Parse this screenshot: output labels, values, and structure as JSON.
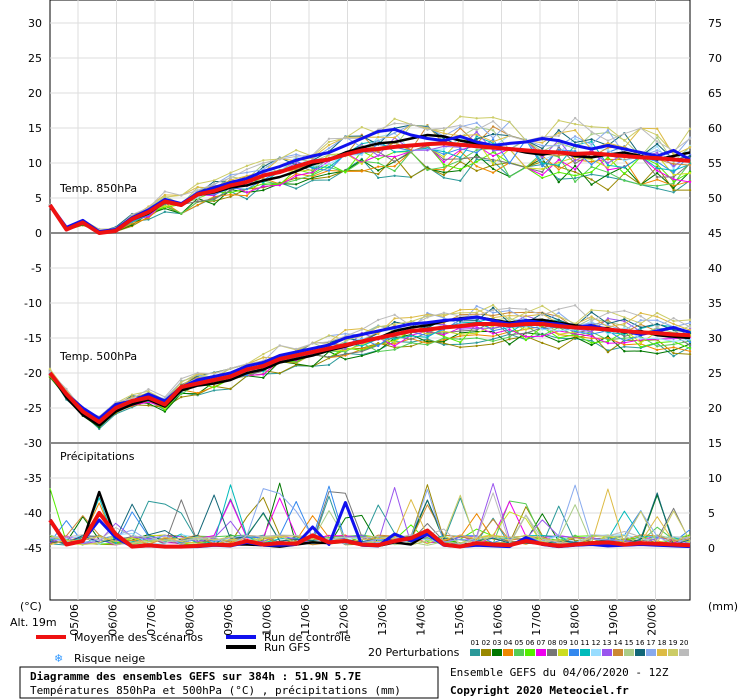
{
  "chart_data": {
    "type": "line",
    "x_dates": [
      "05/06",
      "06/06",
      "07/06",
      "08/06",
      "09/06",
      "10/06",
      "11/06",
      "12/06",
      "13/06",
      "14/06",
      "15/06",
      "16/06",
      "17/06",
      "18/06",
      "19/06",
      "20/06"
    ],
    "left_axis": {
      "unit": "(°C)",
      "ticks": [
        30,
        25,
        20,
        15,
        10,
        5,
        0,
        -5,
        -10,
        -15,
        -20,
        -25,
        -30,
        -35,
        -40,
        -45
      ],
      "range": [
        -45,
        30
      ]
    },
    "right_axis_temp": {
      "unit": "(mm)",
      "ticks": [
        75,
        70,
        65,
        60,
        55,
        50,
        45,
        40,
        35,
        30,
        25,
        20,
        15,
        10,
        5,
        0
      ],
      "range": [
        0,
        75
      ]
    },
    "panels": {
      "t850": {
        "label": "Temp. 850hPa",
        "range": [
          0,
          30
        ]
      },
      "t500": {
        "label": "Temp. 500hPa",
        "range": [
          -30,
          0
        ]
      },
      "precip": {
        "label": "Précipitations",
        "range": [
          -45,
          -30
        ]
      }
    },
    "altitude": "Alt. 19m",
    "series": [
      {
        "name": "Moyenne des scénarios",
        "color": "#ee1111",
        "t850": [
          4.0,
          0.5,
          1.5,
          0.0,
          0.3,
          2.0,
          3.0,
          4.5,
          4.0,
          5.5,
          6.0,
          6.8,
          7.3,
          8.2,
          8.7,
          9.5,
          10.2,
          10.5,
          11.2,
          11.8,
          12.0,
          12.3,
          12.5,
          12.7,
          12.8,
          12.6,
          12.4,
          12.2,
          12.0,
          11.8,
          11.6,
          11.5,
          11.3,
          11.4,
          11.2,
          11.0,
          10.8,
          10.7,
          10.5,
          10.3
        ],
        "t500": [
          -20.0,
          -23.0,
          -25.5,
          -27.0,
          -25.0,
          -24.0,
          -23.5,
          -24.5,
          -22.0,
          -21.5,
          -21.0,
          -20.5,
          -19.5,
          -19.0,
          -18.0,
          -17.5,
          -17.0,
          -16.5,
          -16.0,
          -15.5,
          -15.0,
          -14.5,
          -14.0,
          -13.8,
          -13.5,
          -13.3,
          -13.0,
          -13.0,
          -13.2,
          -13.0,
          -13.0,
          -13.3,
          -13.5,
          -13.6,
          -13.8,
          -14.0,
          -14.2,
          -14.3,
          -14.5,
          -14.6
        ],
        "precip": [
          -41,
          -44.5,
          -44,
          -40,
          -43,
          -44.8,
          -44.6,
          -44.8,
          -44.8,
          -44.7,
          -44.5,
          -44.6,
          -44.0,
          -44.5,
          -44.3,
          -44.4,
          -43.2,
          -44.2,
          -44.0,
          -44.5,
          -44.6,
          -44.0,
          -43.6,
          -42.5,
          -44.5,
          -44.8,
          -44.3,
          -44.5,
          -44.6,
          -44.0,
          -44.4,
          -44.7,
          -44.5,
          -44.3,
          -44.2,
          -44.5,
          -44.3,
          -44.4,
          -44.5,
          -44.6
        ]
      },
      {
        "name": "Run de contrôle",
        "color": "#1111ee",
        "t850": [
          4.0,
          0.8,
          1.8,
          0.2,
          0.5,
          2.2,
          3.3,
          4.8,
          4.2,
          5.7,
          6.5,
          7.2,
          7.8,
          8.8,
          9.5,
          10.4,
          11.0,
          11.5,
          12.5,
          13.5,
          14.5,
          14.8,
          14.0,
          13.5,
          13.2,
          13.8,
          13.0,
          12.5,
          12.8,
          13.0,
          13.5,
          13.2,
          12.5,
          12.0,
          12.5,
          12.0,
          11.5,
          11.0,
          11.8,
          10.5
        ],
        "t500": [
          -20.0,
          -23.0,
          -25.0,
          -26.5,
          -24.5,
          -24.0,
          -23.0,
          -24.0,
          -22.0,
          -21.0,
          -20.5,
          -20.0,
          -19.0,
          -18.5,
          -17.5,
          -17.0,
          -16.5,
          -16.0,
          -15.0,
          -14.5,
          -14.0,
          -13.5,
          -13.0,
          -12.8,
          -12.5,
          -12.3,
          -12.0,
          -12.5,
          -13.0,
          -12.5,
          -12.8,
          -13.0,
          -13.5,
          -13.2,
          -13.8,
          -14.0,
          -14.5,
          -14.0,
          -13.5,
          -14.2
        ],
        "precip": [
          -41,
          -44.5,
          -44,
          -41,
          -43.5,
          -44.8,
          -44.7,
          -44.8,
          -44.8,
          -44.8,
          -44.6,
          -44.7,
          -44.2,
          -44.6,
          -44.6,
          -44.5,
          -42.0,
          -44.5,
          -38.5,
          -44.6,
          -44.7,
          -43.0,
          -44.0,
          -43.0,
          -44.6,
          -44.8,
          -44.6,
          -44.7,
          -44.8,
          -43.5,
          -44.5,
          -44.8,
          -44.6,
          -44.5,
          -44.7,
          -44.6,
          -44.5,
          -44.6,
          -44.7,
          -44.8
        ]
      },
      {
        "name": "Run GFS",
        "color": "#000000",
        "t850": [
          4.0,
          0.5,
          1.6,
          0.1,
          0.2,
          1.9,
          2.8,
          4.4,
          3.9,
          5.4,
          5.8,
          6.5,
          6.8,
          7.5,
          8.0,
          8.8,
          9.8,
          10.5,
          11.5,
          12.2,
          12.8,
          13.0,
          13.5,
          14.0,
          13.8,
          13.2,
          12.8,
          12.4,
          12.0,
          11.5,
          11.2,
          11.6,
          11.0,
          10.8,
          11.2,
          11.5,
          11.0,
          10.5,
          11.0,
          11.5
        ],
        "t500": [
          -20.0,
          -23.5,
          -26.0,
          -27.5,
          -25.5,
          -24.5,
          -23.8,
          -24.8,
          -22.5,
          -21.8,
          -21.5,
          -21.0,
          -20.0,
          -19.5,
          -18.5,
          -18.0,
          -17.5,
          -16.8,
          -16.2,
          -15.6,
          -15.0,
          -14.0,
          -13.5,
          -13.2,
          -12.6,
          -12.2,
          -12.0,
          -12.4,
          -12.8,
          -12.5,
          -12.4,
          -12.8,
          -13.2,
          -13.5,
          -13.6,
          -14.2,
          -14.0,
          -14.6,
          -14.8,
          -15.0
        ],
        "precip": [
          -41,
          -44.5,
          -44,
          -37,
          -43.5,
          -44.8,
          -44.6,
          -44.8,
          -44.8,
          -44.7,
          -44.6,
          -44.5,
          -44.5,
          -44.6,
          -44.8,
          -44.5,
          -44.2,
          -44.3,
          -44.0,
          -44.6,
          -44.7,
          -44.2,
          -44.5,
          -43.0,
          -44.6,
          -44.8,
          -44.5,
          -44.6,
          -44.7,
          -43.8,
          -44.5,
          -44.8,
          -44.6,
          -44.5,
          -44.2,
          -44.5,
          -44.3,
          -44.4,
          -44.5,
          -44.8
        ]
      }
    ],
    "perturbations": {
      "label": "20 Perturbations",
      "numbers": [
        "01",
        "02",
        "03",
        "04",
        "05",
        "06",
        "07",
        "08",
        "09",
        "10",
        "11",
        "12",
        "13",
        "14",
        "15",
        "16",
        "17",
        "18",
        "19",
        "20"
      ],
      "colors": [
        "#2b9999",
        "#998800",
        "#007700",
        "#ee8800",
        "#55cc55",
        "#55ee00",
        "#ee00ee",
        "#777777",
        "#ccdd22",
        "#3388ee",
        "#00bbbb",
        "#99ddff",
        "#9955ee",
        "#cc8833",
        "#aacc88",
        "#116677",
        "#88aaee",
        "#ddbb44",
        "#cccc66",
        "#bbbbbb"
      ]
    },
    "legend": {
      "mean": "Moyenne des scénarios",
      "control": "Run de contrôle",
      "gfs": "Run GFS",
      "snow": "Risque neige"
    }
  },
  "footer": {
    "title": "Diagramme des ensembles GEFS sur 384h : 51.9N 5.7E",
    "subtitle": "Températures 850hPa et 500hPa (°C) , précipitations (mm)",
    "run": "Ensemble GEFS du 04/06/2020 - 12Z",
    "copyright": "Copyright 2020 Meteociel.fr"
  },
  "colors": {
    "mean": "#ee1111",
    "control": "#1111ee",
    "gfs": "#000000",
    "snow": "#3399ff"
  }
}
